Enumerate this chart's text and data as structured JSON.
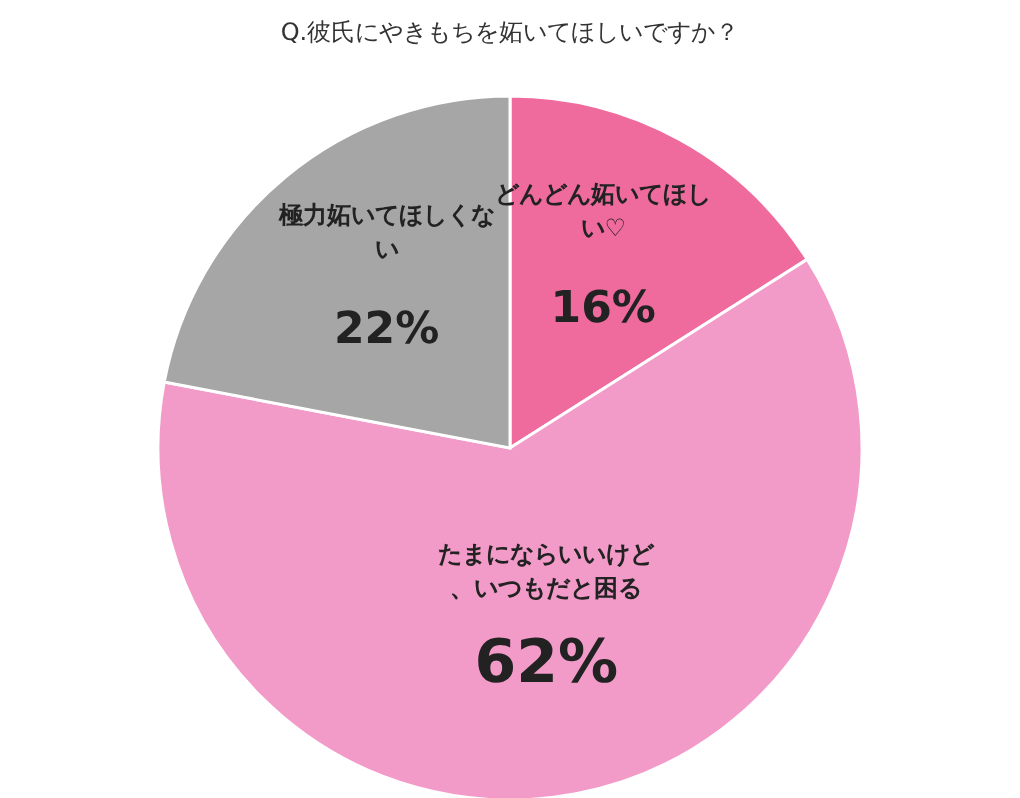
{
  "chart_data": {
    "type": "pie",
    "title": "Q.彼氏にやきもちを妬いてほしいですか？",
    "categories": [
      "どんどん妬いてほしい♡",
      "たまにならいいけど、いつもだと困る",
      "極力妬いてほしくない"
    ],
    "values": [
      16,
      62,
      22
    ],
    "colors": [
      "#f06b9d",
      "#f29ac8",
      "#a6a6a6"
    ],
    "value_labels": [
      "16%",
      "62%",
      "22%"
    ]
  }
}
